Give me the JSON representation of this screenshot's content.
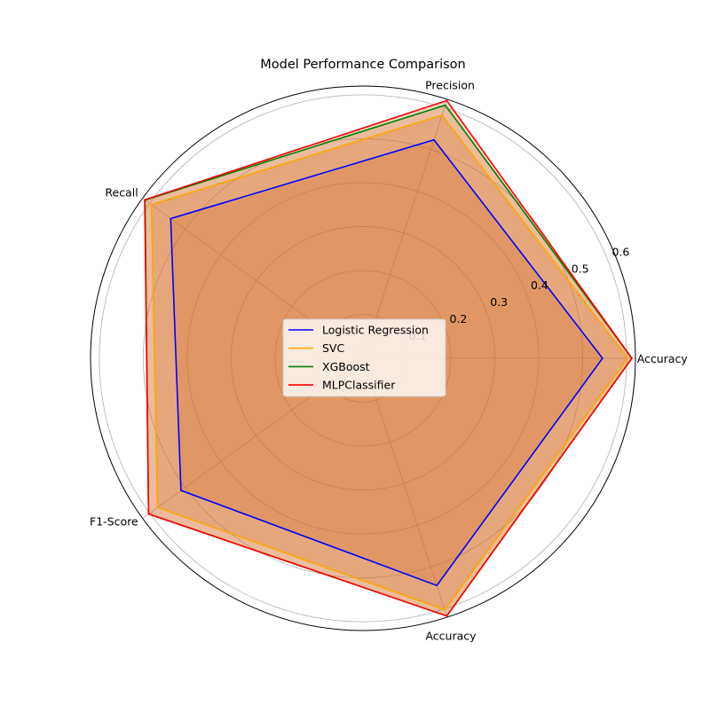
{
  "chart_data": {
    "type": "radar",
    "title": "Model Performance Comparison",
    "axes": [
      "Accuracy",
      "Precision",
      "Recall",
      "F1-Score",
      "Accuracy"
    ],
    "radial_ticks": [
      0.1,
      0.2,
      0.3,
      0.4,
      0.5,
      0.6
    ],
    "rlim": [
      0,
      0.62
    ],
    "grid": true,
    "legend_position": "center",
    "series": [
      {
        "name": "Logistic Regression",
        "color": "#0000ff",
        "values": [
          0.545,
          0.523,
          0.541,
          0.512,
          0.544
        ]
      },
      {
        "name": "SVC",
        "color": "#ffa500",
        "values": [
          0.602,
          0.582,
          0.595,
          0.578,
          0.602
        ]
      },
      {
        "name": "XGBoost",
        "color": "#008000",
        "values": [
          0.612,
          0.606,
          0.613,
          0.603,
          0.617
        ]
      },
      {
        "name": "MLPClassifier",
        "color": "#ff0000",
        "values": [
          0.612,
          0.617,
          0.614,
          0.603,
          0.617
        ]
      }
    ],
    "fill_color": "#d2691e"
  }
}
